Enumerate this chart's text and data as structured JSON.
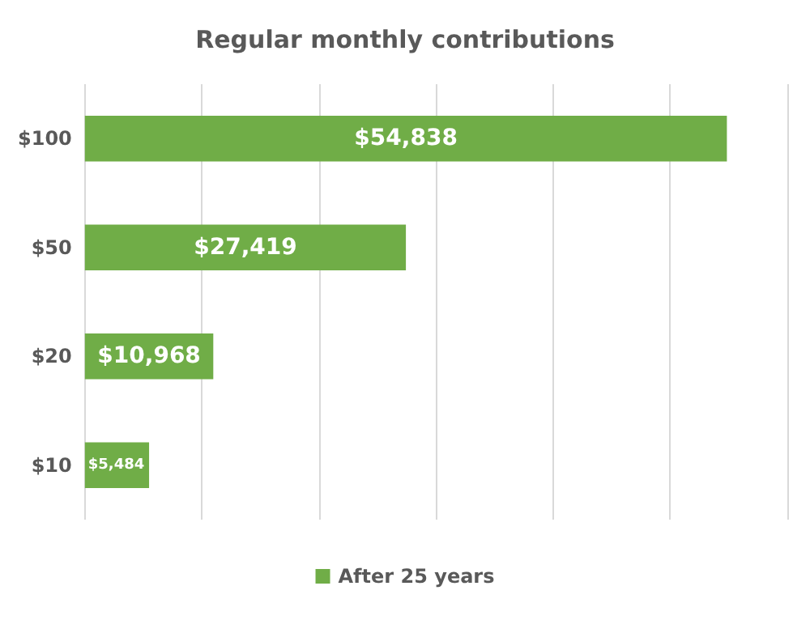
{
  "chart_data": {
    "type": "bar",
    "orientation": "horizontal",
    "title": "Regular monthly contributions",
    "categories": [
      "$100",
      "$50",
      "$20",
      "$10"
    ],
    "series": [
      {
        "name": "After 25 years",
        "color": "#70ad47",
        "values": [
          54838,
          27419,
          10968,
          5484
        ],
        "value_labels": [
          "$54,838",
          "$27,419",
          "$10,968",
          "$5,484"
        ]
      }
    ],
    "xlim": [
      0,
      60000
    ],
    "xticks": [
      {
        "value": 0,
        "label": null
      },
      {
        "value": 10000,
        "label": null
      },
      {
        "value": 20000,
        "label": null
      },
      {
        "value": 30000,
        "label": null
      },
      {
        "value": 40000,
        "label": null
      },
      {
        "value": 50000,
        "label": null
      },
      {
        "value": 60000,
        "label": null
      }
    ],
    "tick_labels": "y",
    "grid": "x",
    "legend": "bottom"
  }
}
